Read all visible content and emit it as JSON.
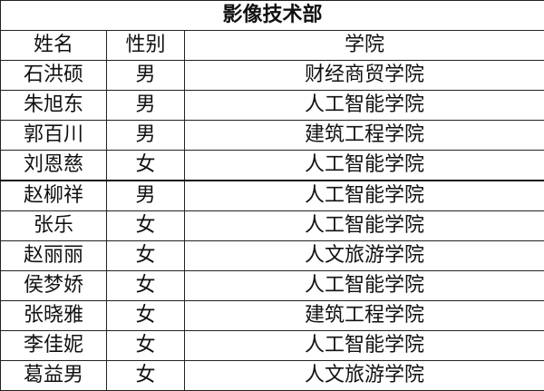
{
  "title": "影像技术部",
  "headers": [
    "姓名",
    "性别",
    "学院"
  ],
  "rows": [
    [
      "石洪硕",
      "男",
      "财经商贸学院"
    ],
    [
      "朱旭东",
      "男",
      "人工智能学院"
    ],
    [
      "郭百川",
      "男",
      "建筑工程学院"
    ],
    [
      "刘恩慈",
      "女",
      "人工智能学院"
    ],
    [
      "赵柳祥",
      "男",
      "人工智能学院"
    ],
    [
      "张乐",
      "女",
      "人工智能学院"
    ],
    [
      "赵丽丽",
      "女",
      "人文旅游学院"
    ],
    [
      "侯梦娇",
      "女",
      "人工智能学院"
    ],
    [
      "张晓雅",
      "女",
      "建筑工程学院"
    ],
    [
      "李佳妮",
      "女",
      "人工智能学院"
    ],
    [
      "葛益男",
      "女",
      "人文旅游学院"
    ]
  ]
}
